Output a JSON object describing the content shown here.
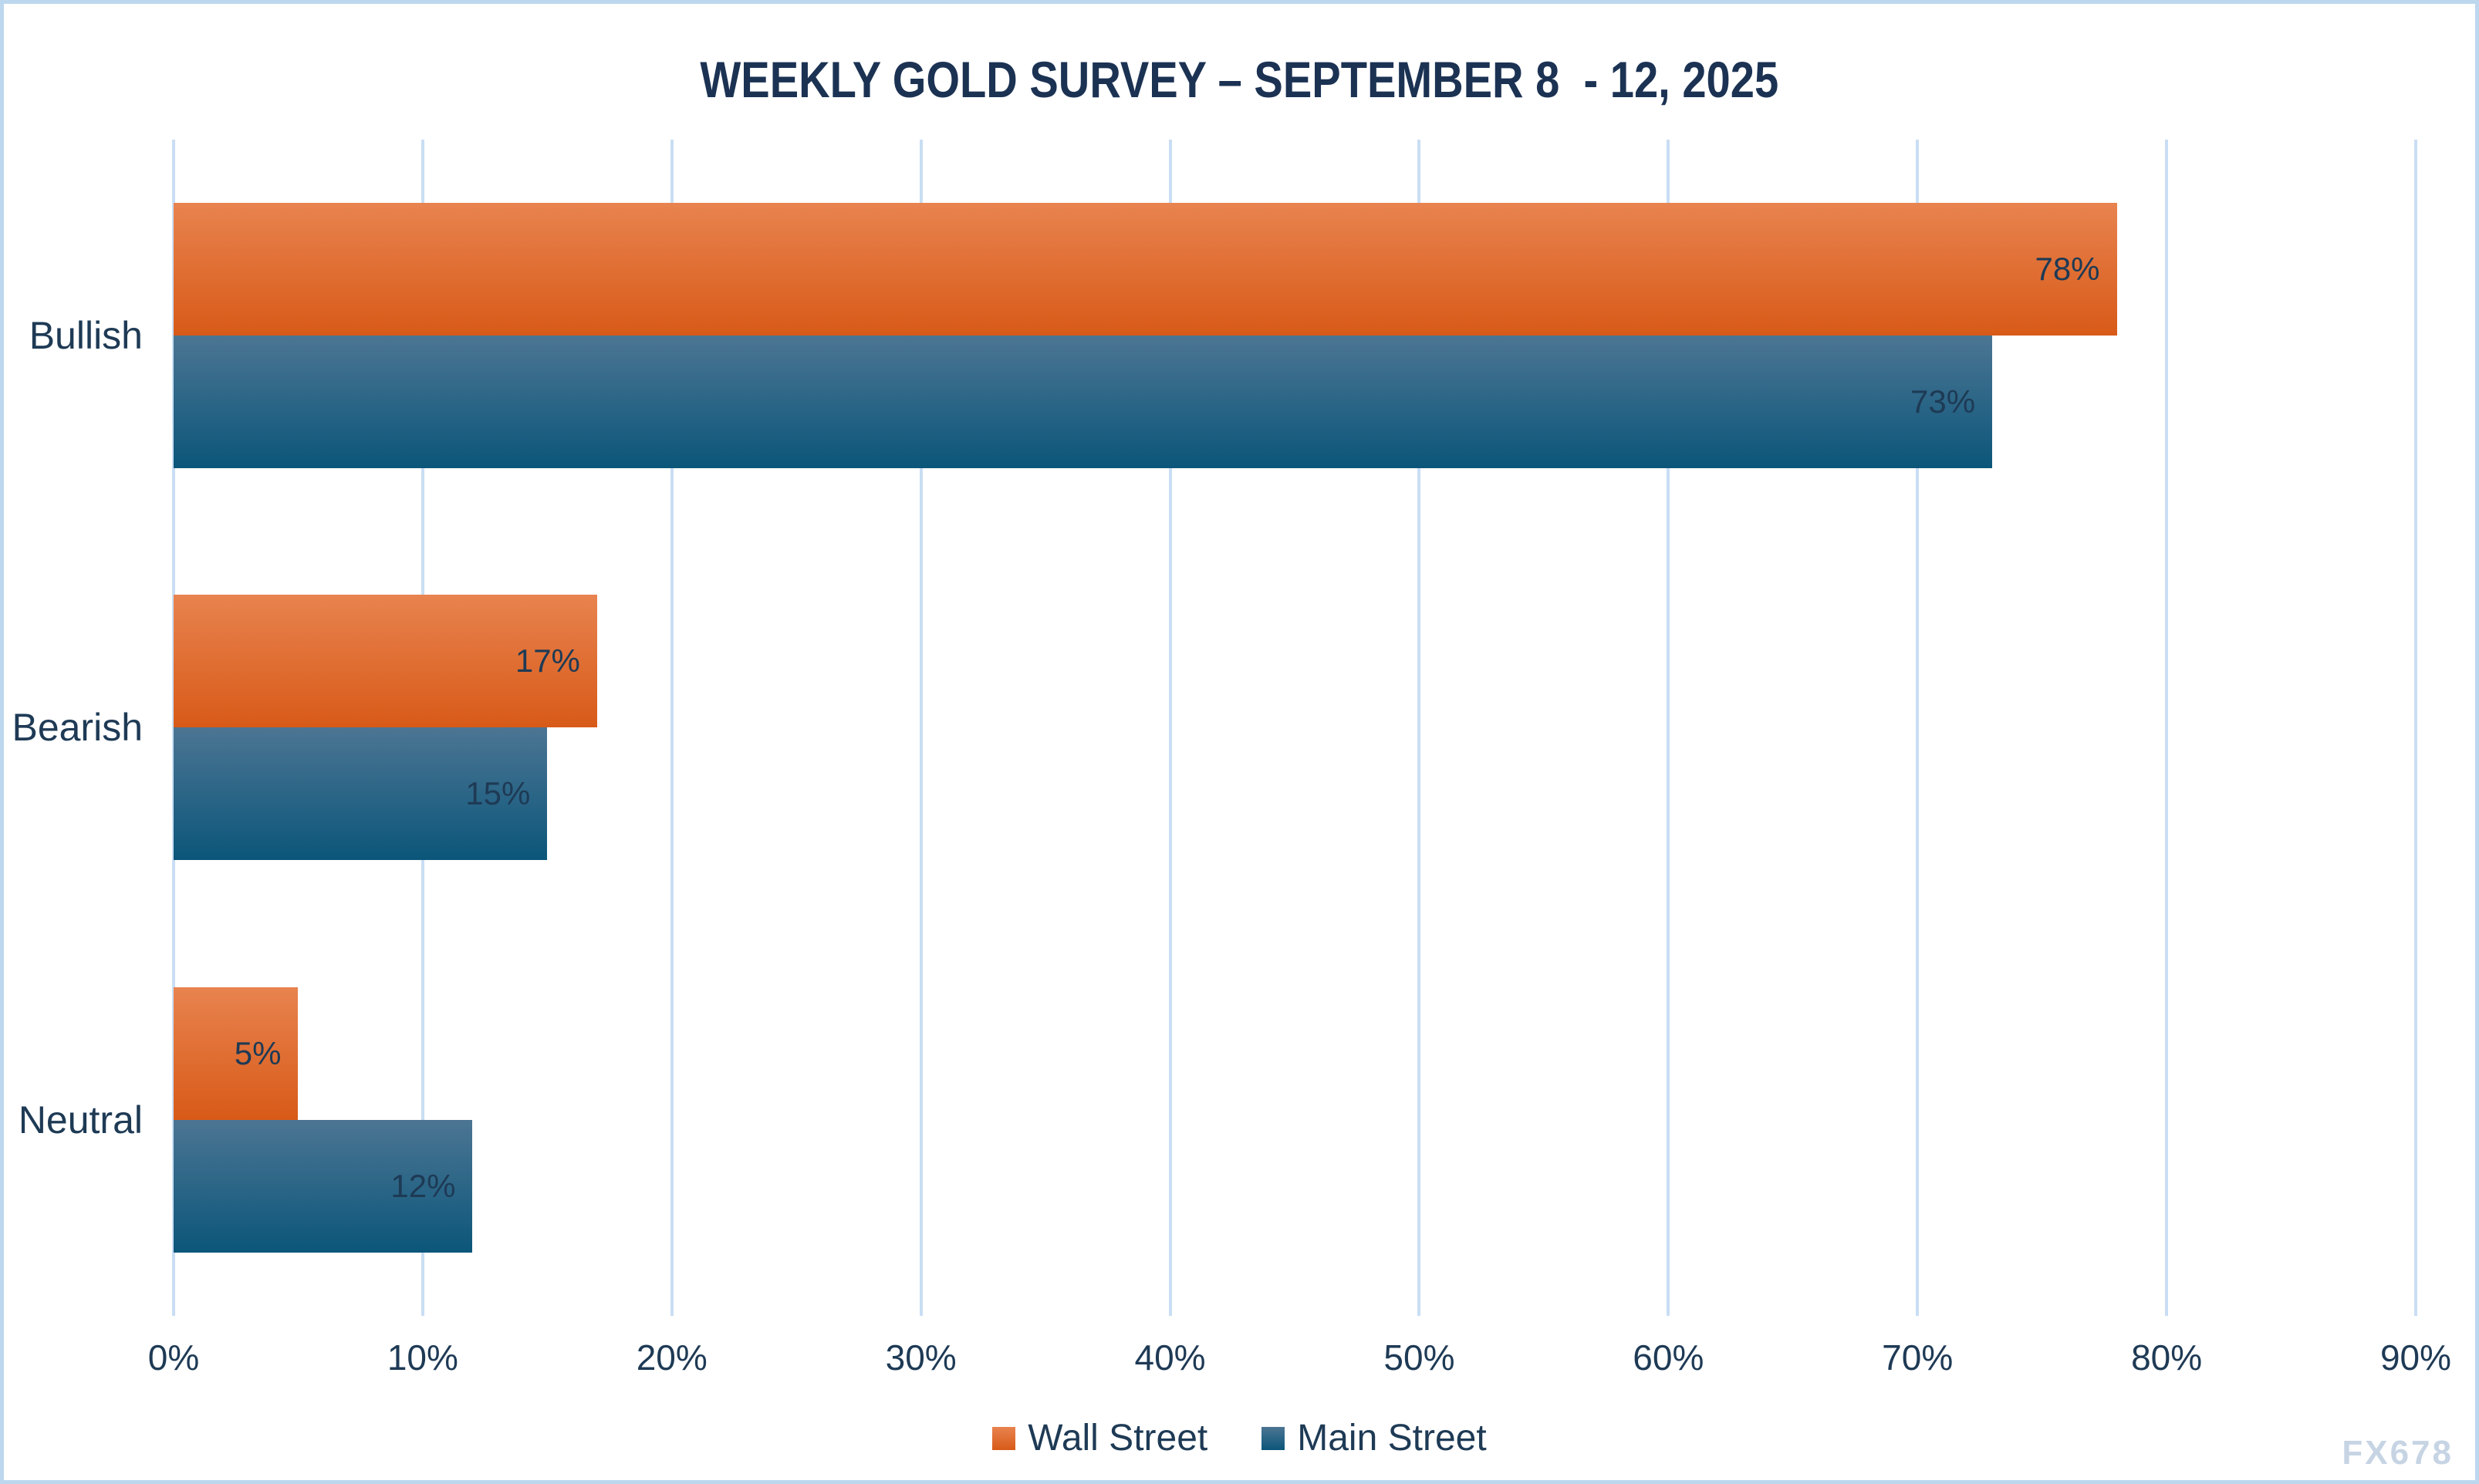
{
  "watermark": "FX678",
  "colors": {
    "background": "#FFFFFF",
    "frame_border": "#BDD7EE",
    "gridline": "#C9DEF4",
    "title_navy": "#1B3253",
    "text_navy": "#1E3A55",
    "watermark": "#C6D4E4"
  },
  "chart_data": {
    "type": "bar",
    "orientation": "horizontal",
    "title": "WEEKLY GOLD SURVEY – SEPTEMBER 8  - 12, 2025",
    "categories": [
      "Bullish",
      "Bearish",
      "Neutral"
    ],
    "series": [
      {
        "name": "Wall Street",
        "values": [
          78,
          17,
          5
        ],
        "color_top": "#E8834F",
        "color_bottom": "#D85A18"
      },
      {
        "name": "Main Street",
        "values": [
          73,
          15,
          12
        ],
        "color_top": "#4C7593",
        "color_bottom": "#0B567A"
      }
    ],
    "value_label_format": "percent",
    "value_labels": [
      [
        "78%",
        "17%",
        "5%"
      ],
      [
        "73%",
        "15%",
        "12%"
      ]
    ],
    "xlabel": "",
    "ylabel": "",
    "xlim": [
      0,
      90
    ],
    "x_ticks": [
      0,
      10,
      20,
      30,
      40,
      50,
      60,
      70,
      80,
      90
    ],
    "x_tick_labels": [
      "0%",
      "10%",
      "20%",
      "30%",
      "40%",
      "50%",
      "60%",
      "70%",
      "80%",
      "90%"
    ],
    "grid": "vertical",
    "legend_position": "bottom"
  }
}
